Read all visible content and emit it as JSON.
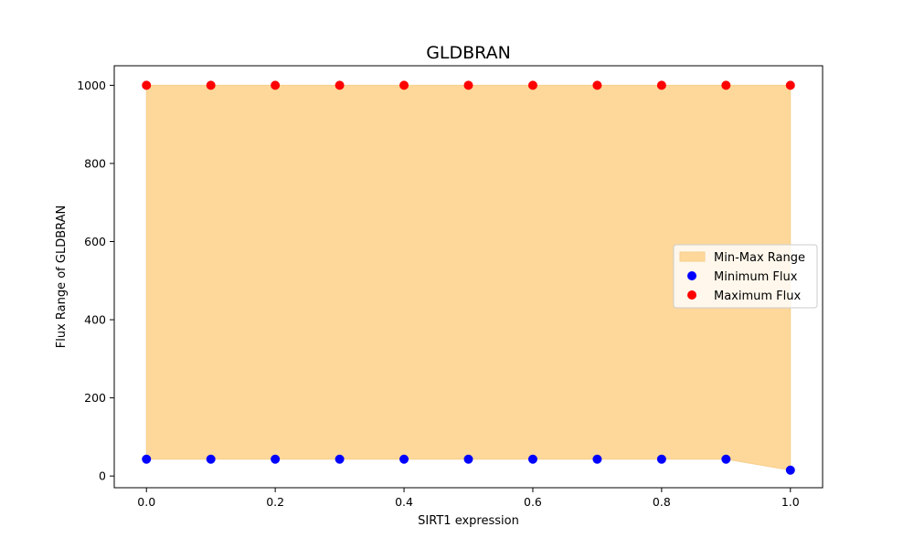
{
  "chart_data": {
    "type": "scatter",
    "title": "GLDBRAN",
    "xlabel": "SIRT1 expression",
    "ylabel": "Flux Range of GLDBRAN",
    "xlim": [
      -0.05,
      1.05
    ],
    "ylim": [
      -30,
      1050
    ],
    "xticks": [
      0.0,
      0.2,
      0.4,
      0.6,
      0.8,
      1.0
    ],
    "xtick_labels": [
      "0.0",
      "0.2",
      "0.4",
      "0.6",
      "0.8",
      "1.0"
    ],
    "yticks": [
      0,
      200,
      400,
      600,
      800,
      1000
    ],
    "ytick_labels": [
      "0",
      "200",
      "400",
      "600",
      "800",
      "1000"
    ],
    "x": [
      0.0,
      0.1,
      0.2,
      0.3,
      0.4,
      0.5,
      0.6,
      0.7,
      0.8,
      0.9,
      1.0
    ],
    "series": [
      {
        "name": "Minimum Flux",
        "kind": "scatter",
        "color": "#0000ff",
        "values": [
          43,
          43,
          43,
          43,
          43,
          43,
          43,
          43,
          43,
          43,
          15
        ]
      },
      {
        "name": "Maximum Flux",
        "kind": "scatter",
        "color": "#ff0000",
        "values": [
          1000,
          1000,
          1000,
          1000,
          1000,
          1000,
          1000,
          1000,
          1000,
          1000,
          1000
        ]
      }
    ],
    "fill": {
      "name": "Min-Max Range",
      "color": "#fdd89a",
      "edge_color": "#f6cf8c",
      "between": [
        "Minimum Flux",
        "Maximum Flux"
      ]
    },
    "grid": false,
    "legend": {
      "position": "center-right",
      "entries": [
        "Min-Max Range",
        "Minimum Flux",
        "Maximum Flux"
      ]
    }
  }
}
